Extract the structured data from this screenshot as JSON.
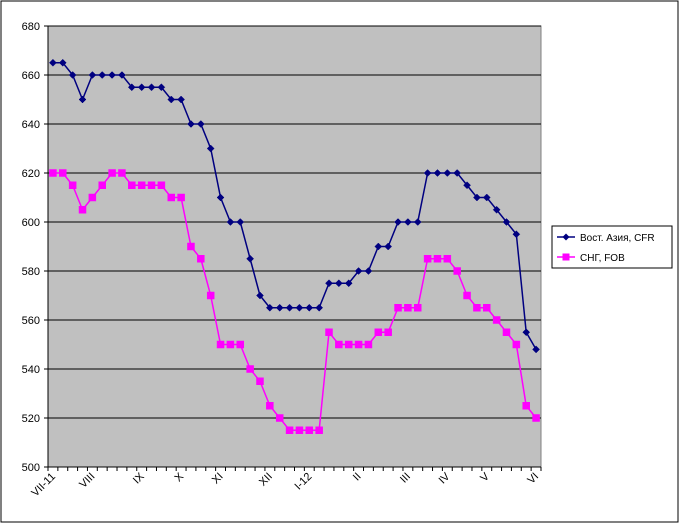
{
  "chart_data": {
    "type": "line",
    "title": "",
    "xlabel": "",
    "ylabel": "",
    "ylim": [
      500,
      680
    ],
    "yticks": [
      500,
      520,
      540,
      560,
      580,
      600,
      620,
      640,
      660,
      680
    ],
    "grid": true,
    "legend_position": "right",
    "category_labels": [
      {
        "index": 0,
        "label": "VII-11"
      },
      {
        "index": 4,
        "label": "VIII"
      },
      {
        "index": 9,
        "label": "IX"
      },
      {
        "index": 13,
        "label": "X"
      },
      {
        "index": 17,
        "label": "XI"
      },
      {
        "index": 22,
        "label": "XII"
      },
      {
        "index": 26,
        "label": "I-12"
      },
      {
        "index": 31,
        "label": "II"
      },
      {
        "index": 36,
        "label": "III"
      },
      {
        "index": 40,
        "label": "IV"
      },
      {
        "index": 44,
        "label": "V"
      },
      {
        "index": 49,
        "label": "VI"
      }
    ],
    "series": [
      {
        "name": "Вост. Азия, CFR",
        "color": "#000080",
        "marker": "diamond",
        "values": [
          665,
          665,
          660,
          650,
          660,
          660,
          660,
          660,
          655,
          655,
          655,
          655,
          650,
          650,
          640,
          640,
          630,
          610,
          600,
          600,
          585,
          570,
          565,
          565,
          565,
          565,
          565,
          565,
          575,
          575,
          575,
          580,
          580,
          590,
          590,
          600,
          600,
          600,
          620,
          620,
          620,
          620,
          615,
          610,
          610,
          605,
          600,
          595,
          555,
          548
        ]
      },
      {
        "name": "СНГ, FOB",
        "color": "#ff00ff",
        "marker": "square",
        "values": [
          620,
          620,
          615,
          605,
          610,
          615,
          620,
          620,
          615,
          615,
          615,
          615,
          610,
          610,
          590,
          585,
          570,
          550,
          550,
          550,
          540,
          535,
          525,
          520,
          515,
          515,
          515,
          515,
          555,
          550,
          550,
          550,
          550,
          555,
          555,
          565,
          565,
          565,
          585,
          585,
          585,
          580,
          570,
          565,
          565,
          560,
          555,
          550,
          525,
          520
        ]
      }
    ]
  }
}
